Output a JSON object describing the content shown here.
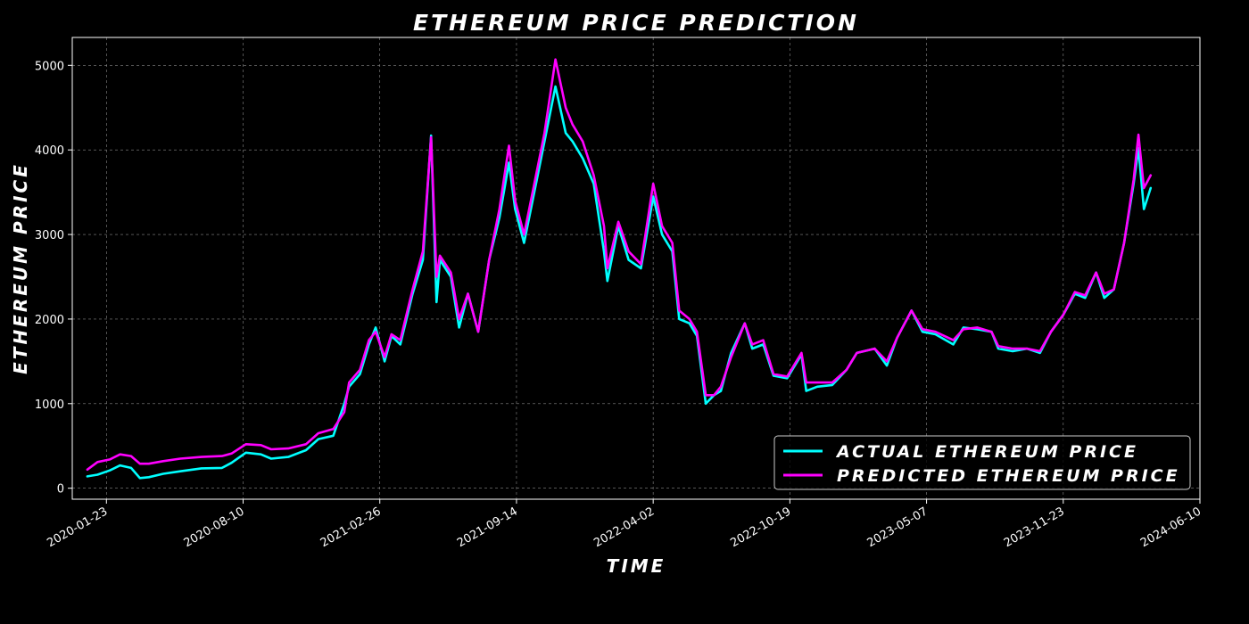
{
  "chart_data": {
    "type": "line",
    "title": "ETHEREUM PRICE PREDICTION",
    "xlabel": "TIME",
    "ylabel": "ETHEREUM PRICE",
    "x_ticks": [
      "2020-01-23",
      "2020-08-10",
      "2021-02-26",
      "2021-09-14",
      "2022-04-02",
      "2022-10-19",
      "2023-05-07",
      "2023-11-23",
      "2024-06-10"
    ],
    "y_ticks": [
      0,
      1000,
      2000,
      3000,
      4000,
      5000
    ],
    "xlim": [
      "2019-12-04",
      "2024-06-10"
    ],
    "ylim": [
      -130,
      5330
    ],
    "grid": true,
    "legend_position": "lower-right",
    "background": "#000000",
    "series": [
      {
        "name": "ACTUAL ETHEREUM PRICE",
        "color": "#00ffff",
        "points": [
          [
            "2019-12-26",
            140
          ],
          [
            "2020-01-10",
            160
          ],
          [
            "2020-01-28",
            210
          ],
          [
            "2020-02-12",
            270
          ],
          [
            "2020-02-28",
            240
          ],
          [
            "2020-03-12",
            120
          ],
          [
            "2020-03-25",
            130
          ],
          [
            "2020-04-15",
            170
          ],
          [
            "2020-05-10",
            200
          ],
          [
            "2020-06-10",
            235
          ],
          [
            "2020-07-10",
            240
          ],
          [
            "2020-07-24",
            300
          ],
          [
            "2020-08-14",
            420
          ],
          [
            "2020-09-05",
            400
          ],
          [
            "2020-09-20",
            350
          ],
          [
            "2020-10-15",
            370
          ],
          [
            "2020-11-10",
            450
          ],
          [
            "2020-11-28",
            580
          ],
          [
            "2020-12-20",
            620
          ],
          [
            "2021-01-05",
            1000
          ],
          [
            "2021-01-12",
            1200
          ],
          [
            "2021-01-28",
            1350
          ],
          [
            "2021-02-10",
            1700
          ],
          [
            "2021-02-20",
            1900
          ],
          [
            "2021-03-05",
            1500
          ],
          [
            "2021-03-15",
            1800
          ],
          [
            "2021-03-28",
            1700
          ],
          [
            "2021-04-15",
            2300
          ],
          [
            "2021-04-30",
            2700
          ],
          [
            "2021-05-12",
            4170
          ],
          [
            "2021-05-20",
            2200
          ],
          [
            "2021-05-25",
            2700
          ],
          [
            "2021-06-10",
            2500
          ],
          [
            "2021-06-22",
            1900
          ],
          [
            "2021-07-05",
            2300
          ],
          [
            "2021-07-20",
            1850
          ],
          [
            "2021-08-05",
            2700
          ],
          [
            "2021-08-20",
            3200
          ],
          [
            "2021-09-03",
            3850
          ],
          [
            "2021-09-12",
            3300
          ],
          [
            "2021-09-25",
            2900
          ],
          [
            "2021-10-10",
            3500
          ],
          [
            "2021-10-25",
            4100
          ],
          [
            "2021-11-10",
            4750
          ],
          [
            "2021-11-25",
            4200
          ],
          [
            "2021-12-05",
            4100
          ],
          [
            "2021-12-20",
            3900
          ],
          [
            "2022-01-05",
            3600
          ],
          [
            "2022-01-20",
            2800
          ],
          [
            "2022-01-25",
            2450
          ],
          [
            "2022-02-10",
            3100
          ],
          [
            "2022-02-25",
            2700
          ],
          [
            "2022-03-15",
            2600
          ],
          [
            "2022-04-02",
            3450
          ],
          [
            "2022-04-15",
            3000
          ],
          [
            "2022-04-30",
            2800
          ],
          [
            "2022-05-10",
            2000
          ],
          [
            "2022-05-25",
            1950
          ],
          [
            "2022-06-05",
            1800
          ],
          [
            "2022-06-18",
            1000
          ],
          [
            "2022-06-30",
            1100
          ],
          [
            "2022-07-10",
            1150
          ],
          [
            "2022-07-25",
            1600
          ],
          [
            "2022-08-14",
            1950
          ],
          [
            "2022-08-25",
            1650
          ],
          [
            "2022-09-10",
            1700
          ],
          [
            "2022-09-25",
            1330
          ],
          [
            "2022-10-15",
            1300
          ],
          [
            "2022-11-05",
            1580
          ],
          [
            "2022-11-12",
            1150
          ],
          [
            "2022-11-28",
            1200
          ],
          [
            "2022-12-20",
            1220
          ],
          [
            "2023-01-10",
            1400
          ],
          [
            "2023-01-25",
            1600
          ],
          [
            "2023-02-20",
            1650
          ],
          [
            "2023-03-10",
            1450
          ],
          [
            "2023-03-25",
            1780
          ],
          [
            "2023-04-15",
            2100
          ],
          [
            "2023-05-01",
            1850
          ],
          [
            "2023-05-20",
            1820
          ],
          [
            "2023-06-15",
            1700
          ],
          [
            "2023-06-30",
            1900
          ],
          [
            "2023-07-20",
            1880
          ],
          [
            "2023-08-10",
            1850
          ],
          [
            "2023-08-20",
            1650
          ],
          [
            "2023-09-10",
            1620
          ],
          [
            "2023-10-01",
            1650
          ],
          [
            "2023-10-20",
            1600
          ],
          [
            "2023-11-05",
            1850
          ],
          [
            "2023-11-23",
            2050
          ],
          [
            "2023-12-10",
            2300
          ],
          [
            "2023-12-25",
            2250
          ],
          [
            "2024-01-10",
            2550
          ],
          [
            "2024-01-22",
            2250
          ],
          [
            "2024-02-05",
            2350
          ],
          [
            "2024-02-20",
            2900
          ],
          [
            "2024-03-05",
            3600
          ],
          [
            "2024-03-12",
            4020
          ],
          [
            "2024-03-20",
            3300
          ],
          [
            "2024-03-30",
            3550
          ]
        ]
      },
      {
        "name": "PREDICTED ETHEREUM PRICE",
        "color": "#ff00ff",
        "points": [
          [
            "2019-12-26",
            220
          ],
          [
            "2020-01-10",
            310
          ],
          [
            "2020-01-28",
            340
          ],
          [
            "2020-02-12",
            400
          ],
          [
            "2020-02-28",
            380
          ],
          [
            "2020-03-12",
            290
          ],
          [
            "2020-03-25",
            290
          ],
          [
            "2020-04-15",
            320
          ],
          [
            "2020-05-10",
            350
          ],
          [
            "2020-06-10",
            370
          ],
          [
            "2020-07-10",
            380
          ],
          [
            "2020-07-24",
            410
          ],
          [
            "2020-08-14",
            520
          ],
          [
            "2020-09-05",
            510
          ],
          [
            "2020-09-20",
            460
          ],
          [
            "2020-10-15",
            470
          ],
          [
            "2020-11-10",
            520
          ],
          [
            "2020-11-28",
            650
          ],
          [
            "2020-12-20",
            700
          ],
          [
            "2021-01-05",
            900
          ],
          [
            "2021-01-12",
            1250
          ],
          [
            "2021-01-28",
            1400
          ],
          [
            "2021-02-10",
            1750
          ],
          [
            "2021-02-20",
            1850
          ],
          [
            "2021-03-05",
            1550
          ],
          [
            "2021-03-15",
            1820
          ],
          [
            "2021-03-28",
            1750
          ],
          [
            "2021-04-15",
            2350
          ],
          [
            "2021-04-30",
            2800
          ],
          [
            "2021-05-12",
            4150
          ],
          [
            "2021-05-20",
            2500
          ],
          [
            "2021-05-25",
            2750
          ],
          [
            "2021-06-10",
            2550
          ],
          [
            "2021-06-22",
            2000
          ],
          [
            "2021-07-05",
            2300
          ],
          [
            "2021-07-20",
            1850
          ],
          [
            "2021-08-05",
            2700
          ],
          [
            "2021-08-20",
            3300
          ],
          [
            "2021-09-03",
            4050
          ],
          [
            "2021-09-12",
            3400
          ],
          [
            "2021-09-25",
            3000
          ],
          [
            "2021-10-10",
            3600
          ],
          [
            "2021-10-25",
            4200
          ],
          [
            "2021-11-10",
            5070
          ],
          [
            "2021-11-25",
            4500
          ],
          [
            "2021-12-05",
            4300
          ],
          [
            "2021-12-20",
            4100
          ],
          [
            "2022-01-05",
            3700
          ],
          [
            "2022-01-20",
            3100
          ],
          [
            "2022-01-25",
            2600
          ],
          [
            "2022-02-10",
            3150
          ],
          [
            "2022-02-25",
            2800
          ],
          [
            "2022-03-15",
            2650
          ],
          [
            "2022-04-02",
            3600
          ],
          [
            "2022-04-15",
            3100
          ],
          [
            "2022-04-30",
            2900
          ],
          [
            "2022-05-10",
            2100
          ],
          [
            "2022-05-25",
            2000
          ],
          [
            "2022-06-05",
            1850
          ],
          [
            "2022-06-18",
            1100
          ],
          [
            "2022-06-30",
            1100
          ],
          [
            "2022-07-10",
            1200
          ],
          [
            "2022-07-25",
            1550
          ],
          [
            "2022-08-14",
            1950
          ],
          [
            "2022-08-25",
            1700
          ],
          [
            "2022-09-10",
            1750
          ],
          [
            "2022-09-25",
            1350
          ],
          [
            "2022-10-15",
            1320
          ],
          [
            "2022-11-05",
            1600
          ],
          [
            "2022-11-12",
            1250
          ],
          [
            "2022-11-28",
            1250
          ],
          [
            "2022-12-20",
            1250
          ],
          [
            "2023-01-10",
            1400
          ],
          [
            "2023-01-25",
            1600
          ],
          [
            "2023-02-20",
            1650
          ],
          [
            "2023-03-10",
            1500
          ],
          [
            "2023-03-25",
            1780
          ],
          [
            "2023-04-15",
            2100
          ],
          [
            "2023-05-01",
            1880
          ],
          [
            "2023-05-20",
            1850
          ],
          [
            "2023-06-15",
            1750
          ],
          [
            "2023-06-30",
            1880
          ],
          [
            "2023-07-20",
            1900
          ],
          [
            "2023-08-10",
            1850
          ],
          [
            "2023-08-20",
            1680
          ],
          [
            "2023-09-10",
            1650
          ],
          [
            "2023-10-01",
            1650
          ],
          [
            "2023-10-20",
            1620
          ],
          [
            "2023-11-05",
            1850
          ],
          [
            "2023-11-23",
            2050
          ],
          [
            "2023-12-10",
            2320
          ],
          [
            "2023-12-25",
            2280
          ],
          [
            "2024-01-10",
            2550
          ],
          [
            "2024-01-22",
            2300
          ],
          [
            "2024-02-05",
            2350
          ],
          [
            "2024-02-20",
            2900
          ],
          [
            "2024-03-05",
            3650
          ],
          [
            "2024-03-12",
            4180
          ],
          [
            "2024-03-20",
            3550
          ],
          [
            "2024-03-30",
            3700
          ]
        ]
      }
    ]
  }
}
